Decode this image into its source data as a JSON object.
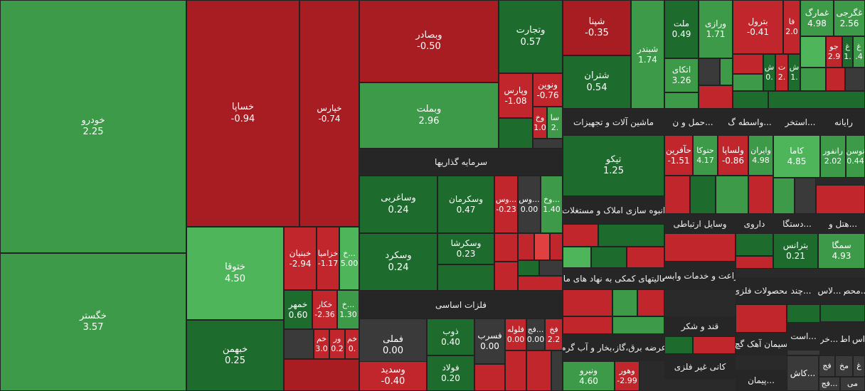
{
  "colors": {
    "positive_strong": "#1e6b2e",
    "positive": "#3c9a48",
    "positive_light": "#4fb55a",
    "negative": "#c0262b",
    "negative_strong": "#a81d22",
    "negative_light": "#e04040",
    "neutral": "#3a3a3a",
    "header_bg": "#262626"
  },
  "chart_data": {
    "type": "heatmap",
    "subtype": "treemap",
    "title": "",
    "value_meaning": "percent change",
    "groups": [
      "سرمایه گذاریها",
      "فلزات اساسی",
      "ماشین آلات و تجهیزات",
      "حمل و ن...",
      "واسطه گ...",
      "استخر...",
      "رایانه",
      "انبوه سازی املاک و مستغلات",
      "وسایل ارتباطی",
      "داروی",
      "دستگا...",
      "هتل و...",
      "فعالیتهای کمکی به نهاد های مال",
      "زراعت و خدمات وابسته",
      "محصولات فلزی",
      "چند...",
      "لاس...",
      "محص...",
      "قند و شکر",
      "سیمان آهک گچ",
      "است...",
      "خر...",
      "اط",
      "اس",
      "عرضه برق،گاز،بخار و آب گرم",
      "کانی غیر فلزی",
      "پیمان..."
    ],
    "points": [
      {
        "name": "خودرو",
        "value": "2.25",
        "change": 2.25
      },
      {
        "name": "خگستر",
        "value": "3.57",
        "change": 3.57
      },
      {
        "name": "خساپا",
        "value": "-0.94",
        "change": -0.94
      },
      {
        "name": "خپارس",
        "value": "-0.74",
        "change": -0.74
      },
      {
        "name": "ختوقا",
        "value": "4.50",
        "change": 4.5
      },
      {
        "name": "خبهمن",
        "value": "0.25",
        "change": 0.25
      },
      {
        "name": "خبنیان",
        "value": "-2.94",
        "change": -2.94
      },
      {
        "name": "خزامیا",
        "value": "-1.17",
        "change": -1.17
      },
      {
        "name": "خ...",
        "value": "5.00",
        "change": 5.0
      },
      {
        "name": "خمهر",
        "value": "0.60",
        "change": 0.6
      },
      {
        "name": "خکار",
        "value": "-2.36",
        "change": -2.36
      },
      {
        "name": "خ...",
        "value": "1.30",
        "change": 1.3
      },
      {
        "name": "خم",
        "value": "3.0",
        "change": 3.0
      },
      {
        "name": "ور",
        "value": "0.2",
        "change": 0.2
      },
      {
        "name": "خم",
        "value": "0.",
        "change": 0.0
      },
      {
        "name": "وبصادر",
        "value": "-0.50",
        "change": -0.5
      },
      {
        "name": "وبملت",
        "value": "2.96",
        "change": 2.96
      },
      {
        "name": "وتجارت",
        "value": "0.57",
        "change": 0.57
      },
      {
        "name": "وپارس",
        "value": "-1.08",
        "change": -1.08
      },
      {
        "name": "ونوین",
        "value": "-0.76",
        "change": -0.76
      },
      {
        "name": "وخ",
        "value": "1.0",
        "change": 1.0
      },
      {
        "name": "سا",
        "value": "2.",
        "change": 2.0
      },
      {
        "name": "شپنا",
        "value": "-0.35",
        "change": -0.35
      },
      {
        "name": "شبندر",
        "value": "1.74",
        "change": 1.74
      },
      {
        "name": "شتران",
        "value": "0.54",
        "change": 0.54
      },
      {
        "name": "ملت",
        "value": "0.49",
        "change": 0.49
      },
      {
        "name": "ورازی",
        "value": "1.71",
        "change": 1.71
      },
      {
        "name": "اتکای",
        "value": "3.26",
        "change": 3.26
      },
      {
        "name": "بترول",
        "value": "-0.41",
        "change": -0.41
      },
      {
        "name": "فا",
        "value": "2.0",
        "change": 2.0
      },
      {
        "name": "ش",
        "value": "0.",
        "change": 0.0
      },
      {
        "name": "ت",
        "value": "2.",
        "change": 2.0
      },
      {
        "name": "ش",
        "value": "1.",
        "change": 1.0
      },
      {
        "name": "غمارگ",
        "value": "4.98",
        "change": 4.98
      },
      {
        "name": "غگرجی",
        "value": "2.56",
        "change": 2.56
      },
      {
        "name": "جو",
        "value": "2.9",
        "change": 2.9
      },
      {
        "name": "غ",
        "value": "1.",
        "change": 1.0
      },
      {
        "name": "غ",
        "value": ".4",
        "change": 0.4
      },
      {
        "name": "وساغربی",
        "value": "0.24",
        "change": 0.24
      },
      {
        "name": "وسکرمان",
        "value": "0.47",
        "change": 0.47
      },
      {
        "name": "وس...",
        "value": "-0.23",
        "change": -0.23
      },
      {
        "name": "وس...",
        "value": "0.00",
        "change": 0.0
      },
      {
        "name": "وخ...",
        "value": "1.40",
        "change": 1.4
      },
      {
        "name": "وسکرشا",
        "value": "0.23",
        "change": 0.23
      },
      {
        "name": "وسکرد",
        "value": "0.24",
        "change": 0.24
      },
      {
        "name": "فملی",
        "value": "0.00",
        "change": 0.0
      },
      {
        "name": "ذوب",
        "value": "0.40",
        "change": 0.4
      },
      {
        "name": "فسرب",
        "value": "0.00",
        "change": 0.0
      },
      {
        "name": "فلوله",
        "value": "0.00",
        "change": 0.0
      },
      {
        "name": "فج...",
        "value": "0.00",
        "change": 0.0
      },
      {
        "name": "فخ",
        "value": "2.2",
        "change": 2.2
      },
      {
        "name": "وسدید",
        "value": "-0.40",
        "change": -0.4
      },
      {
        "name": "فولاد",
        "value": "0.20",
        "change": 0.2
      },
      {
        "name": "تیکو",
        "value": "1.25",
        "change": 1.25
      },
      {
        "name": "حآفرین",
        "value": "-1.51",
        "change": -1.51
      },
      {
        "name": "حتوکا",
        "value": "4.17",
        "change": 4.17
      },
      {
        "name": "ولساپا",
        "value": "-0.86",
        "change": -0.86
      },
      {
        "name": "وایران",
        "value": "4.98",
        "change": 4.98
      },
      {
        "name": "کاما",
        "value": "4.85",
        "change": 4.85
      },
      {
        "name": "رانفور",
        "value": "2.02",
        "change": 2.02
      },
      {
        "name": "توسن",
        "value": "0.44",
        "change": 0.44
      },
      {
        "name": "بترانس",
        "value": "0.21",
        "change": 0.21
      },
      {
        "name": "سمگا",
        "value": "4.93",
        "change": 4.93
      },
      {
        "name": "ونیرو",
        "value": "4.60",
        "change": 4.6
      },
      {
        "name": "وهور",
        "value": "-2.99",
        "change": -2.99
      },
      {
        "name": "کاش...",
        "value": "",
        "change": null
      },
      {
        "name": "مخ",
        "value": "",
        "change": null
      },
      {
        "name": "غ",
        "value": "",
        "change": null
      },
      {
        "name": "فج",
        "value": "",
        "change": null
      },
      {
        "name": "می",
        "value": "",
        "change": null
      },
      {
        "name": "فج...",
        "value": "",
        "change": null
      }
    ]
  }
}
